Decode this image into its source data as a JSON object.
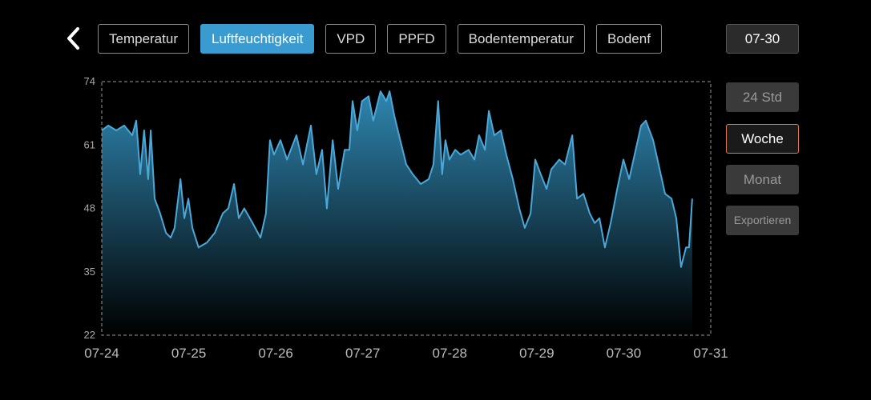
{
  "nav": {
    "tabs": [
      {
        "label": "Temperatur"
      },
      {
        "label": "Luftfeuchtigkeit",
        "selected": true
      },
      {
        "label": "VPD"
      },
      {
        "label": "PPFD"
      },
      {
        "label": "Bodentemperatur"
      },
      {
        "label": "Bodenf"
      }
    ],
    "date_button": "07-30"
  },
  "ranges": [
    {
      "label": "24 Std"
    },
    {
      "label": "Woche",
      "selected": true
    },
    {
      "label": "Monat"
    }
  ],
  "export_button": "Exportieren",
  "chart_data": {
    "type": "area",
    "color": "#4aa8d8",
    "x": [
      0,
      1.8,
      4.0,
      6.2,
      8.4,
      9.5,
      10.6,
      11.7,
      12.8,
      13.5,
      14.6,
      16.1,
      17.7,
      19.0,
      20.1,
      21.7,
      22.8,
      23.9,
      25.0,
      26.7,
      29.0,
      31.2,
      33.4,
      34.9,
      36.5,
      37.8,
      39.3,
      41.6,
      43.8,
      45.3,
      46.4,
      47.5,
      49.3,
      51.1,
      53.7,
      55.5,
      57.7,
      59.2,
      60.8,
      62.1,
      63.7,
      65.2,
      67.0,
      68.3,
      69.2,
      70.5,
      71.8,
      73.6,
      74.9,
      76.9,
      78.5,
      79.4,
      80.7,
      82.0,
      84.0,
      85.8,
      88.0,
      90.2,
      91.5,
      92.8,
      93.9,
      94.8,
      95.9,
      97.5,
      99.0,
      101.2,
      102.8,
      104.1,
      105.7,
      106.8,
      108.3,
      110.1,
      111.6,
      113.4,
      115.2,
      116.7,
      118.3,
      119.6,
      121.1,
      122.7,
      124.0,
      126.2,
      127.8,
      129.8,
      131.1,
      132.9,
      134.6,
      136.0,
      137.3,
      138.8,
      140.4,
      142.2,
      143.9,
      145.5,
      148.8,
      150.1,
      152.1,
      153.6,
      155.4,
      157.2,
      158.5,
      159.8,
      161.2,
      162.0,
      162.9
    ],
    "values": [
      64,
      65,
      64,
      65,
      63,
      66,
      55,
      64,
      54,
      64,
      50,
      47,
      43,
      42,
      44,
      54,
      46,
      50,
      44,
      40,
      41,
      43,
      47,
      48,
      53,
      46,
      48,
      45,
      42,
      47,
      62,
      59,
      62,
      58,
      63,
      57,
      65,
      55,
      60,
      48,
      62,
      52,
      60,
      60,
      70,
      64,
      70,
      71,
      66,
      72,
      70,
      72,
      67,
      63,
      57,
      55,
      53,
      54,
      57,
      70,
      55,
      62,
      58,
      60,
      59,
      60,
      58,
      63,
      60,
      68,
      63,
      64,
      59,
      54,
      48,
      44,
      47,
      58,
      55,
      52,
      56,
      58,
      57,
      63,
      50,
      51,
      47,
      45,
      46,
      40,
      45,
      52,
      58,
      54,
      65,
      66,
      62,
      57,
      51,
      50,
      46,
      36,
      40,
      40,
      50
    ],
    "xlim": [
      0,
      168
    ],
    "xticks": [
      {
        "value": 0,
        "label": "07-24"
      },
      {
        "value": 24,
        "label": "07-25"
      },
      {
        "value": 48,
        "label": "07-26"
      },
      {
        "value": 72,
        "label": "07-27"
      },
      {
        "value": 96,
        "label": "07-28"
      },
      {
        "value": 120,
        "label": "07-29"
      },
      {
        "value": 144,
        "label": "07-30"
      },
      {
        "value": 168,
        "label": "07-31"
      }
    ],
    "ylim": [
      22,
      74
    ],
    "yticks": [
      22,
      35,
      48,
      61,
      74
    ]
  }
}
